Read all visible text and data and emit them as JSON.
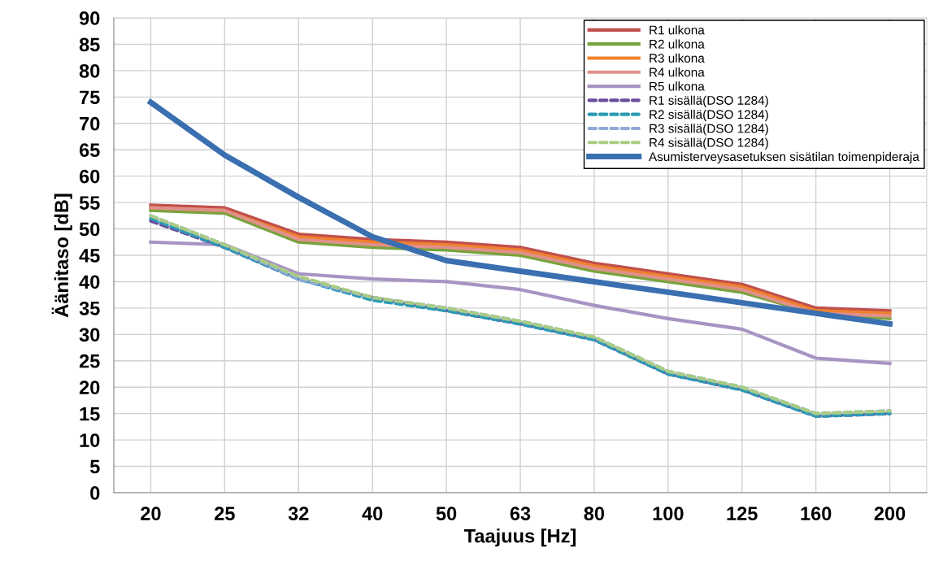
{
  "chart_data": {
    "type": "line",
    "xlabel": "Taajuus [Hz]",
    "ylabel": "Äänitaso [dB]",
    "categories": [
      "20",
      "25",
      "32",
      "40",
      "50",
      "63",
      "80",
      "100",
      "125",
      "160",
      "200"
    ],
    "ylim": [
      0,
      90
    ],
    "yticks": [
      0,
      5,
      10,
      15,
      20,
      25,
      30,
      35,
      40,
      45,
      50,
      55,
      60,
      65,
      70,
      75,
      80,
      85,
      90
    ],
    "grid": true,
    "legend": "top right",
    "marker": "none",
    "series": [
      {
        "name": "R1 ulkona",
        "color": "#c0504d",
        "line_style": "solid",
        "values": [
          54.5,
          54,
          49,
          48,
          47.5,
          46.5,
          43.5,
          41.5,
          39.5,
          35,
          34.5
        ]
      },
      {
        "name": "R2 ulkona",
        "color": "#77a33c",
        "line_style": "solid",
        "values": [
          53.5,
          53,
          47.5,
          46.5,
          46,
          45,
          42,
          40,
          38,
          34,
          33
        ]
      },
      {
        "name": "R3 ulkona",
        "color": "#f0812d",
        "line_style": "solid",
        "values": [
          54,
          53.5,
          48.5,
          47.5,
          47,
          46,
          43,
          41,
          39,
          34.5,
          34
        ]
      },
      {
        "name": "R4 ulkona",
        "color": "#e0908a",
        "line_style": "solid",
        "values": [
          54,
          53.5,
          48,
          47,
          46.5,
          45.5,
          42.5,
          40.5,
          38.5,
          34,
          33.5
        ]
      },
      {
        "name": "R5 ulkona",
        "color": "#a794c4",
        "line_style": "solid",
        "values": [
          47.5,
          47,
          41.5,
          40.5,
          40,
          38.5,
          35.5,
          33,
          31,
          25.5,
          24.5
        ]
      },
      {
        "name": "R1 sisällä(DSO 1284)",
        "color": "#6a4c9c",
        "line_style": "dashed",
        "values": [
          51.5,
          46.5,
          40.5,
          37,
          34.5,
          32,
          29,
          22.5,
          19.5,
          14.5,
          15
        ]
      },
      {
        "name": "R2 sisällä(DSO 1284)",
        "color": "#2b9ab5",
        "line_style": "dashed",
        "values": [
          52,
          46.5,
          40.5,
          36.5,
          34.5,
          32,
          29,
          22.5,
          19.5,
          14.5,
          15
        ]
      },
      {
        "name": "R3 sisällä(DSO 1284)",
        "color": "#8ea9d8",
        "line_style": "dashed",
        "values": [
          52.5,
          47,
          40.5,
          37,
          35,
          32.5,
          29.5,
          23,
          20,
          15,
          15.5
        ]
      },
      {
        "name": "R4 sisällä(DSO 1284)",
        "color": "#a9cc84",
        "line_style": "dashed",
        "values": [
          52.5,
          47,
          41,
          37,
          35,
          32.5,
          29.5,
          23,
          20,
          15,
          15.5
        ]
      },
      {
        "name": "Asumisterveysasetuksen sisätilan toimenpideraja",
        "color": "#3a6fb0",
        "line_style": "solid",
        "values": [
          74,
          64,
          56,
          48.5,
          44,
          42,
          40,
          38,
          36,
          34,
          32
        ]
      }
    ]
  }
}
